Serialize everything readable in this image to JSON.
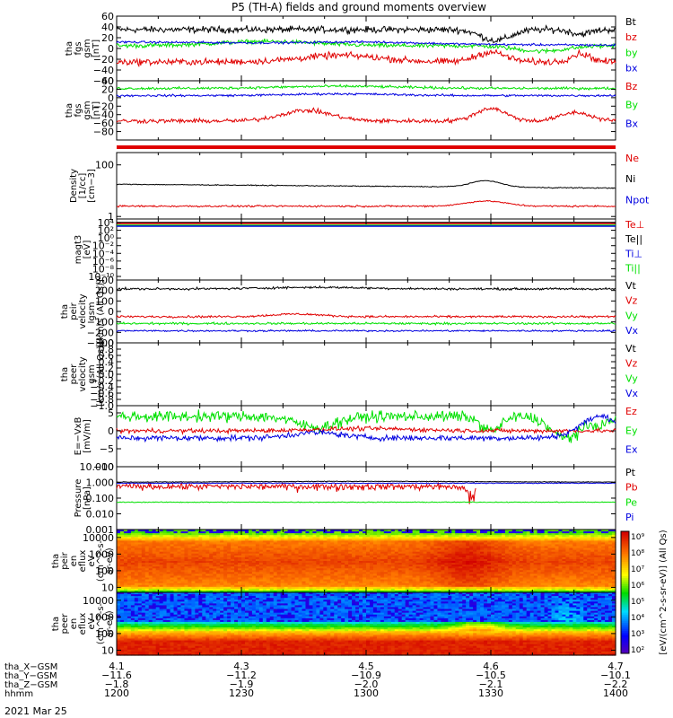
{
  "title": "P5 (TH-A) fields and ground moments overview",
  "date": "2021 Mar 25",
  "colors": {
    "black": "#000000",
    "red": "#e00000",
    "green": "#00e000",
    "blue": "#0000e0"
  },
  "chart_data": [
    {
      "type": "line",
      "ylabel": [
        "tha",
        "fgs",
        "gsm",
        "[nT]"
      ],
      "ylim": [
        -60,
        60
      ],
      "yticks": [
        60,
        40,
        20,
        0,
        -20,
        -40,
        -60
      ],
      "ytick_labels": [
        "60",
        "40",
        "20",
        "0",
        "−20",
        "−40",
        "−60"
      ],
      "series": [
        {
          "name": "Bt",
          "color": "#000000"
        },
        {
          "name": "bz",
          "color": "#e00000"
        },
        {
          "name": "by",
          "color": "#00e000"
        },
        {
          "name": "bx",
          "color": "#0000e0"
        }
      ]
    },
    {
      "type": "line",
      "ylabel": [
        "tha",
        "fgs",
        "gsm",
        "[nT]"
      ],
      "ylim": [
        -100,
        40
      ],
      "yticks": [
        40,
        20,
        0,
        -20,
        -40,
        -60,
        -80
      ],
      "ytick_labels": [
        "40",
        "20",
        "0",
        "−20",
        "−40",
        "−60",
        "−80"
      ],
      "series": [
        {
          "name": "Bz",
          "color": "#e00000"
        },
        {
          "name": "By",
          "color": "#00e000"
        },
        {
          "name": "Bx",
          "color": "#0000e0"
        }
      ]
    },
    {
      "type": "line",
      "ylabel": [
        "Density",
        "[1/cc]",
        "[cm−3]"
      ],
      "ylim_log": [
        0.8,
        300
      ],
      "yticks": [
        100,
        1
      ],
      "ytick_labels": [
        "100",
        "1"
      ],
      "series": [
        {
          "name": "Ne",
          "color": "#e00000"
        },
        {
          "name": "Ni",
          "color": "#000000"
        },
        {
          "name": "Npot",
          "color": "#0000e0"
        }
      ]
    },
    {
      "type": "line",
      "ylabel": [
        "magt3",
        "[eV]"
      ],
      "ytick_labels": [
        "10⁴",
        "10²",
        "10⁰",
        "10⁻²",
        "10⁻⁴",
        "10⁻⁶",
        "10⁻⁸",
        "10⁻¹⁰"
      ],
      "series": [
        {
          "name": "Te⊥",
          "color": "#e00000"
        },
        {
          "name": "Te||",
          "color": "#000000"
        },
        {
          "name": "Ti⊥",
          "color": "#0000e0"
        },
        {
          "name": "Ti||",
          "color": "#00e000"
        }
      ]
    },
    {
      "type": "line",
      "ylabel": [
        "tha",
        "peir",
        "velocity",
        "gsm",
        "[km/s (All Qs)]"
      ],
      "ylim": [
        -300,
        300
      ],
      "yticks": [
        300,
        200,
        100,
        0,
        -100,
        -200,
        -300
      ],
      "ytick_labels": [
        "300",
        "200",
        "100",
        "0",
        "−100",
        "−200",
        "−300"
      ],
      "series": [
        {
          "name": "Vt",
          "color": "#000000"
        },
        {
          "name": "Vz",
          "color": "#e00000"
        },
        {
          "name": "Vy",
          "color": "#00e000"
        },
        {
          "name": "Vx",
          "color": "#0000e0"
        }
      ]
    },
    {
      "type": "line",
      "ylabel": [
        "tha",
        "peer",
        "velocity",
        "gsm",
        "[km/s (All Qs)]"
      ],
      "ylim": [
        -1.0,
        1.0
      ],
      "yticks": [
        1.0,
        0.8,
        0.6,
        0.4,
        0.2,
        0.0,
        -0.2,
        -0.4,
        -0.6,
        -0.8,
        -1.0
      ],
      "ytick_labels": [
        "1.0",
        "0.8",
        "0.6",
        "0.4",
        "0.2",
        "0.0",
        "−0.2",
        "−0.4",
        "−0.6",
        "−0.8",
        "−1.0"
      ],
      "series": [
        {
          "name": "Vt",
          "color": "#000000"
        },
        {
          "name": "Vz",
          "color": "#e00000"
        },
        {
          "name": "Vy",
          "color": "#00e000"
        },
        {
          "name": "Vx",
          "color": "#0000e0"
        }
      ]
    },
    {
      "type": "line",
      "ylabel": [
        "E=−VxB",
        "[mV/m]"
      ],
      "ylim": [
        -10,
        7
      ],
      "yticks": [
        5,
        0,
        -5,
        -10
      ],
      "ytick_labels": [
        "5",
        "0",
        "−5",
        "−10"
      ],
      "series": [
        {
          "name": "Ez",
          "color": "#e00000"
        },
        {
          "name": "Ey",
          "color": "#00e000"
        },
        {
          "name": "Ex",
          "color": "#0000e0"
        }
      ]
    },
    {
      "type": "line",
      "ylabel": [
        "Pressure",
        "[nPa]"
      ],
      "ylim_log": [
        0.001,
        10
      ],
      "yticks": [
        10,
        1,
        0.1,
        0.01,
        0.001
      ],
      "ytick_labels": [
        "10.000",
        "1.000",
        "0.100",
        "0.010",
        "0.001"
      ],
      "series": [
        {
          "name": "Pt",
          "color": "#000000"
        },
        {
          "name": "Pb",
          "color": "#e00000"
        },
        {
          "name": "Pe",
          "color": "#00e000"
        },
        {
          "name": "Pi",
          "color": "#0000e0"
        }
      ]
    },
    {
      "type": "heatmap",
      "ylabel": [
        "tha",
        "peir",
        "en",
        "eflux",
        "eV",
        "(cm^2-s-",
        "sr-eV)"
      ],
      "ylim_log": [
        5,
        30000
      ],
      "yticks": [
        10000,
        1000,
        100,
        10
      ],
      "ytick_labels": [
        "10000",
        "1000",
        "100",
        "10"
      ]
    },
    {
      "type": "heatmap",
      "ylabel": [
        "tha",
        "peer",
        "en",
        "eflux",
        "eV",
        "(cm^2-s-",
        "sr-eV)"
      ],
      "ylim_log": [
        5,
        30000
      ],
      "yticks": [
        10000,
        1000,
        100,
        10
      ],
      "ytick_labels": [
        "10000",
        "1000",
        "100",
        "10"
      ]
    }
  ],
  "colorbar": {
    "label": "[eV/(cm^2-s-sr-eV)] (All Qs)",
    "ticks": [
      "10⁹",
      "10⁸",
      "10⁷",
      "10⁶",
      "10⁵",
      "10⁴",
      "10³",
      "10²"
    ]
  },
  "x_axis": {
    "row_labels": [
      "tha_X−GSM",
      "tha_Y−GSM",
      "tha_Z−GSM",
      "hhmm"
    ],
    "columns": [
      {
        "x": "4.1",
        "y": "−11.6",
        "z": "−1.8",
        "hhmm": "1200"
      },
      {
        "x": "4.3",
        "y": "−11.2",
        "z": "−1.9",
        "hhmm": "1230"
      },
      {
        "x": "4.5",
        "y": "−10.9",
        "z": "−2.0",
        "hhmm": "1300"
      },
      {
        "x": "4.6",
        "y": "−10.5",
        "z": "−2.1",
        "hhmm": "1330"
      },
      {
        "x": "4.7",
        "y": "−10.1",
        "z": "−2.2",
        "hhmm": "1400"
      }
    ]
  }
}
